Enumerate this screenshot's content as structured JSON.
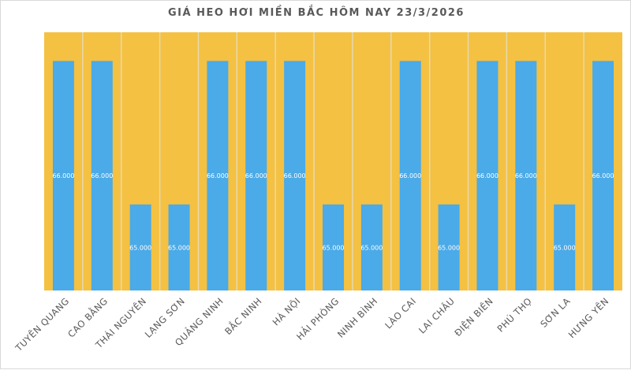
{
  "chart_data": {
    "type": "bar",
    "title": "GIÁ HEO HƠI MIỀN BẮC HÔM NAY 23/3/2026",
    "categories": [
      "TUYÊN QUANG",
      "CAO BẰNG",
      "THÁI NGUYÊN",
      "LẠNG SƠN",
      "QUẢNG NINH",
      "BẮC NINH",
      "HÀ NỘI",
      "HẢI PHÒNG",
      "NINH BÌNH",
      "LÀO CAI",
      "LAI CHÂU",
      "ĐIỆN BIÊN",
      "PHÚ THỌ",
      "SƠN LA",
      "HƯNG YÊN"
    ],
    "values": [
      66,
      66,
      65,
      65,
      66,
      66,
      66,
      65,
      65,
      66,
      65,
      66,
      66,
      65,
      66
    ],
    "data_labels": [
      "66.000",
      "66.000",
      "65.000",
      "65.000",
      "66.000",
      "66.000",
      "66.000",
      "65.000",
      "65.000",
      "66.000",
      "65.000",
      "66.000",
      "66.000",
      "65.000",
      "66.000"
    ],
    "ylim": [
      64.4,
      66.2
    ],
    "grid": false,
    "colors": {
      "bar": "#4baae8",
      "plot_background": "#f4c142",
      "separator": "#e8d9b0",
      "label": "#595959"
    }
  }
}
